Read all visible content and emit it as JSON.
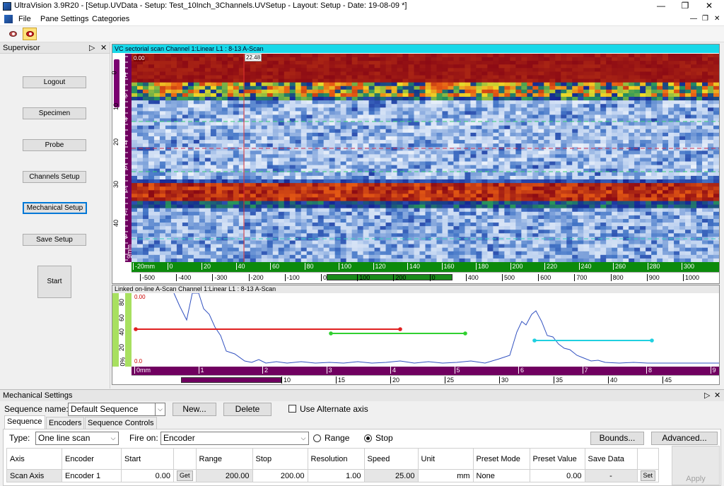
{
  "window": {
    "title": "UltraVision 3.9R20 - [Setup.UVData - Setup: Test_10Inch_3Channels.UVSetup - Layout: Setup - Date: 19-08-09 *]"
  },
  "menu": {
    "items": [
      "File",
      "Pane Settings",
      "Categories"
    ]
  },
  "supervisor": {
    "title": "Supervisor",
    "buttons": [
      "Logout",
      "Specimen",
      "Probe",
      "Channels Setup",
      "Mechanical Setup",
      "Save Setup"
    ],
    "start_label": "Start"
  },
  "scan_pane": {
    "title": "VC sectorial scan Channel 1:Linear  L1 : 8-13 A-Scan",
    "top_left_value": "0.00",
    "cursor_value": "22.48",
    "y_ticks": [
      "0",
      "10",
      "20",
      "30",
      "40",
      "9mm"
    ],
    "y_sub_ticks": [
      "1",
      "2",
      "3",
      "4",
      "5",
      "6",
      "7",
      "8"
    ],
    "x_ticks_top": [
      "-20mm",
      "0",
      "20",
      "40",
      "60",
      "80",
      "100",
      "120",
      "140",
      "160",
      "180",
      "200",
      "220",
      "240",
      "260",
      "280",
      "300"
    ],
    "x_ticks_bottom": [
      "-500",
      "-400",
      "-300",
      "-200",
      "-100",
      "0",
      "100",
      "200",
      "0",
      "400",
      "500",
      "600",
      "700",
      "800",
      "900",
      "1000"
    ]
  },
  "ascan_pane": {
    "title": "Linked on-line A-Scan Channel 1:Linear  L1 : 8-13 A-Scan",
    "top_value": "0.00",
    "bottom_value": "0.0",
    "y_ticks": [
      "80",
      "60",
      "40",
      "20",
      "0%"
    ],
    "x_ticks_top": [
      "0mm",
      "1",
      "2",
      "3",
      "4",
      "5",
      "6",
      "7",
      "8",
      "9"
    ],
    "x_ticks_bottom": [
      "10",
      "15",
      "20",
      "25",
      "30",
      "35",
      "40",
      "45"
    ]
  },
  "mechanical": {
    "title": "Mechanical Settings",
    "sequence_name_label": "Sequence name:",
    "sequence_name_value": "Default Sequence",
    "new_label": "New...",
    "delete_label": "Delete",
    "alternate_axis_label": "Use Alternate axis",
    "tabs": [
      "Sequence",
      "Encoders",
      "Sequence Controls"
    ],
    "type_label": "Type:",
    "type_value": "One line scan",
    "fire_on_label": "Fire on:",
    "fire_on_value": "Encoder",
    "range_label": "Range",
    "stop_label": "Stop",
    "bounds_label": "Bounds...",
    "advanced_label": "Advanced...",
    "apply_label": "Apply",
    "table": {
      "headers": [
        "Axis",
        "Encoder",
        "Start",
        "",
        "Range",
        "Stop",
        "Resolution",
        "Speed",
        "Unit",
        "Preset Mode",
        "Preset Value",
        "Save Data",
        ""
      ],
      "row": {
        "axis": "Scan Axis",
        "encoder": "Encoder 1",
        "start": "0.00",
        "get": "Get",
        "range": "200.00",
        "stop": "200.00",
        "resolution": "1.00",
        "speed": "25.00",
        "unit": "mm",
        "preset_mode": "None",
        "preset_value": "0.00",
        "save_data": "-",
        "set": "Set"
      }
    }
  }
}
